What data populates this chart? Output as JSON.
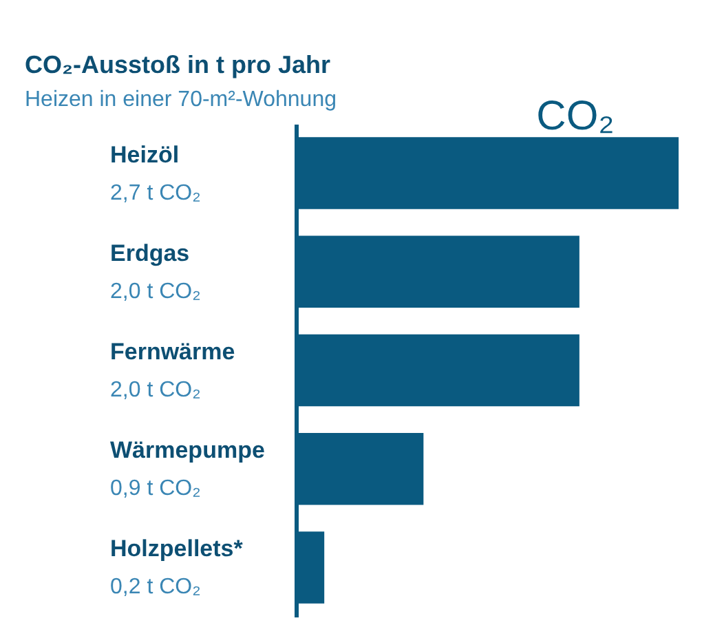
{
  "chart_data": {
    "type": "bar",
    "orientation": "horizontal",
    "title": "CO₂-Ausstoß in t pro Jahr",
    "subtitle": "Heizen in einer 70-m²-Wohnung",
    "categories": [
      "Heizöl",
      "Erdgas",
      "Fernwärme",
      "Wärmepumpe",
      "Holzpellets*"
    ],
    "values": [
      2.7,
      2.0,
      2.0,
      0.9,
      0.2
    ],
    "value_labels": [
      "2,7 t CO₂",
      "2,0 t CO₂",
      "2,0 t CO₂",
      "0,9 t CO₂",
      "0,2 t CO₂"
    ],
    "color": "#0a5a80",
    "tick_labels": false,
    "annotations": [
      "CO₂"
    ]
  }
}
